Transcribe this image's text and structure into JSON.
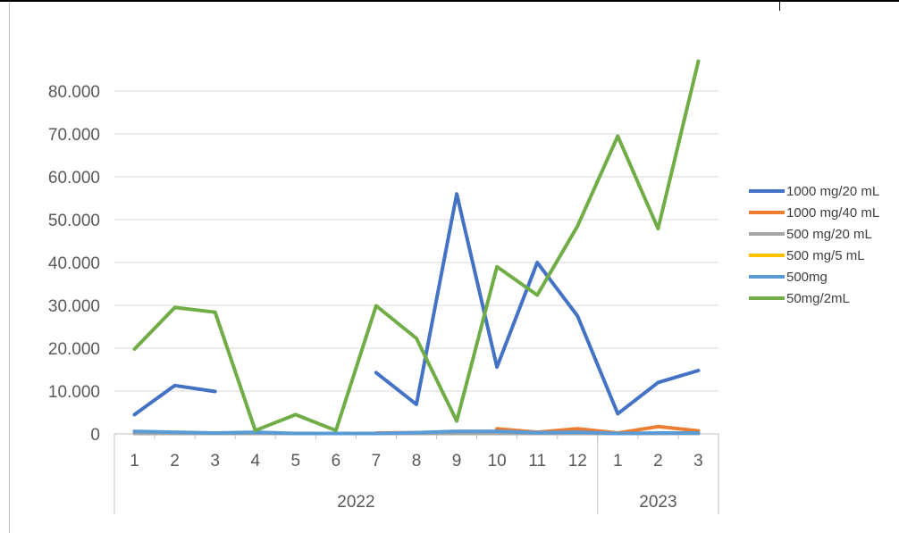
{
  "chart_data": {
    "type": "line",
    "title": "",
    "xlabel": "",
    "ylabel": "",
    "ylim": [
      0,
      90000
    ],
    "y_ticks": [
      0,
      10000,
      20000,
      30000,
      40000,
      50000,
      60000,
      70000,
      80000
    ],
    "y_tick_labels": [
      "0",
      "10.000",
      "20.000",
      "30.000",
      "40.000",
      "50.000",
      "60.000",
      "70.000",
      "80.000"
    ],
    "grid": true,
    "legend_position": "right",
    "categories": [
      "1",
      "2",
      "3",
      "4",
      "5",
      "6",
      "7",
      "8",
      "9",
      "10",
      "11",
      "12",
      "1",
      "2",
      "3"
    ],
    "groups": [
      {
        "label": "2022",
        "count": 12
      },
      {
        "label": "2023",
        "count": 3
      }
    ],
    "series": [
      {
        "name": "1000 mg/20 mL",
        "color": "#4472C4",
        "values": [
          4500,
          11300,
          9900,
          null,
          null,
          null,
          14300,
          6900,
          56000,
          15600,
          40000,
          27500,
          4700,
          12000,
          14800
        ]
      },
      {
        "name": "1000 mg/40 mL",
        "color": "#ED7D31",
        "values": [
          null,
          null,
          null,
          null,
          null,
          null,
          200,
          300,
          null,
          1200,
          400,
          1200,
          200,
          1700,
          700
        ]
      },
      {
        "name": "500 mg/20 mL",
        "color": "#A5A5A5",
        "values": [
          100,
          100,
          100,
          100,
          100,
          100,
          100,
          100,
          100,
          100,
          100,
          100,
          100,
          100,
          100
        ]
      },
      {
        "name": "500 mg/5 mL",
        "color": "#FFC000",
        "values": [
          null,
          null,
          null,
          null,
          null,
          null,
          null,
          null,
          null,
          null,
          null,
          null,
          null,
          null,
          null
        ]
      },
      {
        "name": "500mg",
        "color": "#5B9BD5",
        "values": [
          600,
          400,
          200,
          400,
          100,
          100,
          100,
          300,
          600,
          600,
          300,
          400,
          100,
          200,
          200
        ]
      },
      {
        "name": "50mg/2mL",
        "color": "#70AD47",
        "values": [
          19800,
          29500,
          28400,
          800,
          4500,
          800,
          29900,
          22300,
          3000,
          39000,
          32400,
          48500,
          69500,
          47900,
          87000
        ]
      }
    ]
  }
}
